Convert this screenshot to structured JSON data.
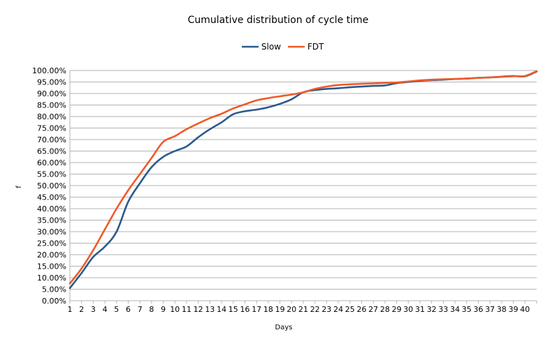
{
  "chart_data": {
    "type": "line",
    "title": "Cumulative distribution of cycle time",
    "xlabel": "Days",
    "ylabel": "f",
    "xlim": [
      1,
      41
    ],
    "ylim": [
      0,
      1
    ],
    "x_ticks": [
      1,
      2,
      3,
      4,
      5,
      6,
      7,
      8,
      9,
      10,
      11,
      12,
      13,
      14,
      15,
      16,
      17,
      18,
      19,
      20,
      21,
      22,
      23,
      24,
      25,
      26,
      27,
      28,
      29,
      30,
      31,
      32,
      33,
      34,
      35,
      36,
      37,
      38,
      39,
      40
    ],
    "y_ticks": [
      0,
      0.05,
      0.1,
      0.15,
      0.2,
      0.25,
      0.3,
      0.35,
      0.4,
      0.45,
      0.5,
      0.55,
      0.6,
      0.65,
      0.7,
      0.75,
      0.8,
      0.85,
      0.9,
      0.95,
      1.0
    ],
    "y_tick_labels": [
      "0.00%",
      "5.00%",
      "10.00%",
      "15.00%",
      "20.00%",
      "25.00%",
      "30.00%",
      "35.00%",
      "40.00%",
      "45.00%",
      "50.00%",
      "55.00%",
      "60.00%",
      "65.00%",
      "70.00%",
      "75.00%",
      "80.00%",
      "85.00%",
      "90.00%",
      "95.00%",
      "100.00%"
    ],
    "grid": "horizontal",
    "legend_position": "top-center",
    "x": [
      1,
      2,
      3,
      4,
      5,
      6,
      7,
      8,
      9,
      10,
      11,
      12,
      13,
      14,
      15,
      16,
      17,
      18,
      19,
      20,
      21,
      22,
      23,
      24,
      25,
      26,
      27,
      28,
      29,
      30,
      31,
      32,
      33,
      34,
      35,
      36,
      37,
      38,
      39,
      40,
      41
    ],
    "series": [
      {
        "name": "Slow",
        "color": "#2a5a8c",
        "values": [
          0.055,
          0.12,
          0.19,
          0.235,
          0.3,
          0.43,
          0.51,
          0.58,
          0.625,
          0.65,
          0.67,
          0.71,
          0.745,
          0.775,
          0.81,
          0.823,
          0.83,
          0.84,
          0.855,
          0.875,
          0.905,
          0.915,
          0.92,
          0.923,
          0.927,
          0.93,
          0.933,
          0.935,
          0.945,
          0.95,
          0.955,
          0.958,
          0.96,
          0.963,
          0.965,
          0.968,
          0.97,
          0.973,
          0.976,
          0.975,
          0.995
        ]
      },
      {
        "name": "FDT",
        "color": "#f05a28",
        "values": [
          0.075,
          0.14,
          0.22,
          0.31,
          0.4,
          0.48,
          0.55,
          0.62,
          0.69,
          0.715,
          0.745,
          0.77,
          0.793,
          0.812,
          0.835,
          0.853,
          0.87,
          0.88,
          0.888,
          0.895,
          0.905,
          0.92,
          0.93,
          0.937,
          0.94,
          0.942,
          0.944,
          0.946,
          0.948,
          0.952,
          0.957,
          0.96,
          0.962,
          0.963,
          0.965,
          0.968,
          0.97,
          0.972,
          0.975,
          0.976,
          0.997
        ]
      }
    ]
  }
}
